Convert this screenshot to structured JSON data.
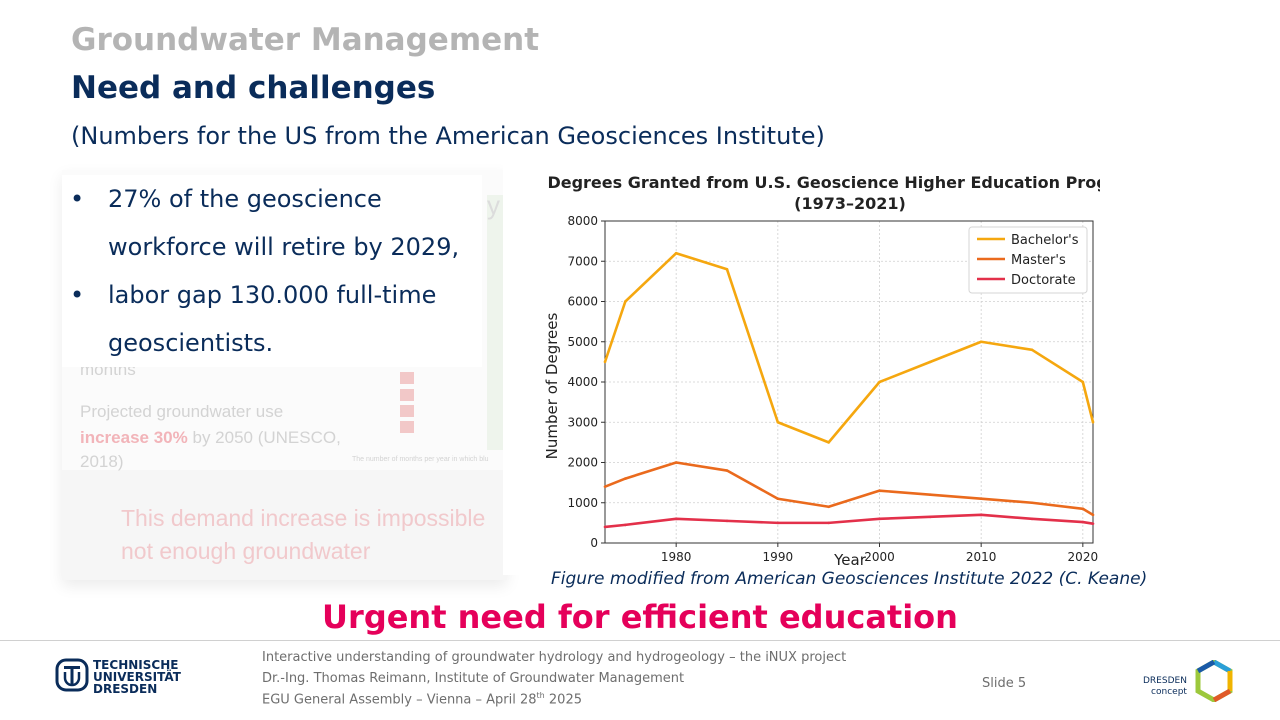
{
  "header": {
    "section": "Groundwater Management",
    "title": "Need and challenges",
    "source_note": "(Numbers for the US from the American Geosciences Institute)"
  },
  "bullets": [
    {
      "line1": "27% of the geoscience",
      "line2": "workforce will retire by 2029,"
    },
    {
      "line1": "labor gap 130.000 full-time",
      "line2": "geoscientists."
    }
  ],
  "bullet_symbol": "•",
  "background_slide": {
    "line_fragment": "months",
    "projection_line1": "Projected groundwater use",
    "projection_highlight": "increase 30%",
    "projection_rest": "by 2050 (UNESCO,",
    "projection_line3": "2018)",
    "demand_line1": "This demand increase is impossible",
    "demand_line2": "not enough groundwater",
    "map_caption": "The number of months per year in which blu",
    "heading_fragment": "y"
  },
  "chart_data": {
    "type": "line",
    "title": "Degrees Granted from U.S. Geoscience Higher Education Programs",
    "subtitle": "(1973–2021)",
    "xlabel": "Year",
    "ylabel": "Number of Degrees",
    "xlim": [
      1973,
      2021
    ],
    "ylim": [
      0,
      8000
    ],
    "xticks": [
      1980,
      1990,
      2000,
      2010,
      2020
    ],
    "yticks": [
      0,
      1000,
      2000,
      3000,
      4000,
      5000,
      6000,
      7000,
      8000
    ],
    "grid": true,
    "legend_position": "top-right",
    "series": [
      {
        "name": "Bachelor's",
        "color": "#f5a70f",
        "x": [
          1973,
          1975,
          1980,
          1985,
          1990,
          1995,
          2000,
          2005,
          2010,
          2015,
          2020,
          2021
        ],
        "y": [
          4500,
          6000,
          7200,
          6800,
          3000,
          2500,
          4000,
          4500,
          5000,
          4800,
          4000,
          3000
        ]
      },
      {
        "name": "Master's",
        "color": "#ea6a1d",
        "x": [
          1973,
          1975,
          1980,
          1985,
          1990,
          1995,
          2000,
          2005,
          2010,
          2015,
          2020,
          2021
        ],
        "y": [
          1400,
          1600,
          2000,
          1800,
          1100,
          900,
          1300,
          1200,
          1100,
          1000,
          850,
          700
        ]
      },
      {
        "name": "Doctorate",
        "color": "#e3304a",
        "x": [
          1973,
          1975,
          1980,
          1985,
          1990,
          1995,
          2000,
          2005,
          2010,
          2015,
          2020,
          2021
        ],
        "y": [
          400,
          450,
          600,
          550,
          500,
          500,
          600,
          650,
          700,
          600,
          520,
          480
        ]
      }
    ]
  },
  "caption": "Figure modified from American Geosciences Institute 2022 (C. Keane)",
  "urgent": "Urgent need for efficient education",
  "footer": {
    "line1": "Interactive understanding of groundwater hydrology and hydrogeology – the iNUX project",
    "line2": "Dr.-Ing. Thomas Reimann, Institute of Groundwater Management",
    "line3_prefix": "EGU General Assembly – Vienna – April 28",
    "line3_sup": "th",
    "line3_suffix": " 2025",
    "slide_label": "Slide",
    "slide_number": "5"
  },
  "logos": {
    "tud_line1": "TECHNISCHE",
    "tud_line2": "UNIVERSITÄT",
    "tud_line3": "DRESDEN",
    "dresden_line1": "DRESDEN",
    "dresden_line2": "concept"
  },
  "colors": {
    "accent": "#e5005a",
    "primary": "#0a2c5a",
    "muted": "#b4b4b4"
  }
}
